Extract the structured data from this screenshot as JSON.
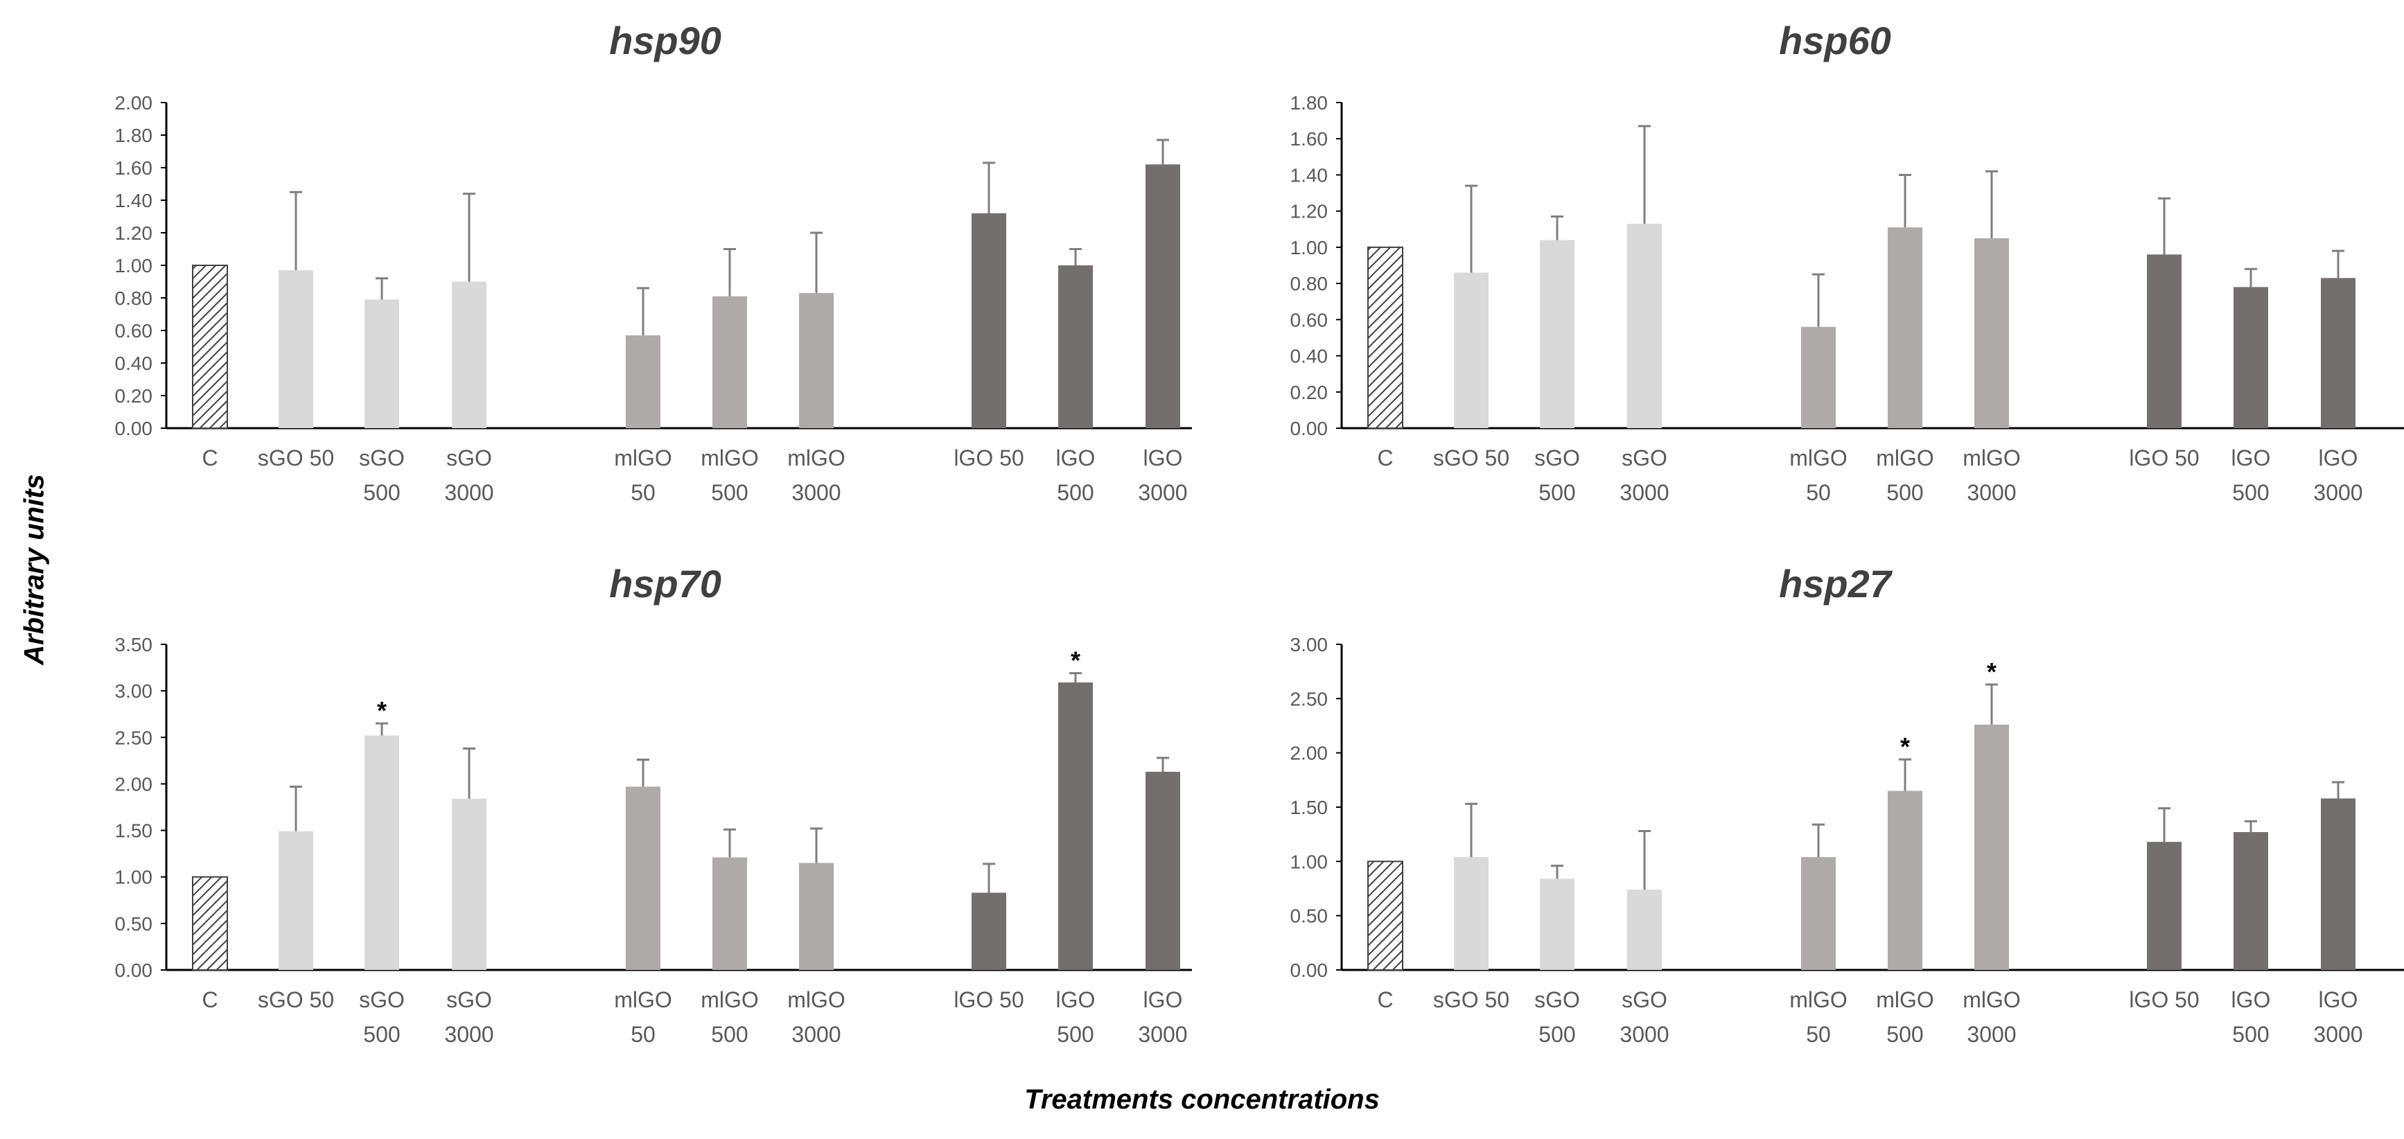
{
  "figure": {
    "y_axis_title": "Arbitrary units",
    "x_axis_title": "Treatments concentrations"
  },
  "colors": {
    "control": "#ffffff",
    "control_hatch": "#404040",
    "sGO": "#d9d9d9",
    "mlGO": "#aeaaaa",
    "lGO": "#736f6f",
    "error_bar": "#7f7f7f",
    "axis": "#000000",
    "tick_text": "#595959"
  },
  "chart_data": [
    {
      "type": "bar",
      "title": "hsp90",
      "categories": [
        "C",
        "sGO 50",
        "sGO 500",
        "sGO 3000",
        "mlGO 50",
        "mlGO 500",
        "mlGO 3000",
        "lGO 50",
        "lGO 500",
        "lGO 3000"
      ],
      "groups": [
        "control",
        "sGO",
        "sGO",
        "sGO",
        "mlGO",
        "mlGO",
        "mlGO",
        "lGO",
        "lGO",
        "lGO"
      ],
      "values": [
        1.0,
        0.97,
        0.79,
        0.9,
        0.57,
        0.81,
        0.83,
        1.32,
        1.0,
        1.62
      ],
      "errors": [
        0,
        0.48,
        0.13,
        0.54,
        0.29,
        0.29,
        0.37,
        0.31,
        0.1,
        0.15
      ],
      "significant": [
        false,
        false,
        false,
        false,
        false,
        false,
        false,
        false,
        false,
        false
      ],
      "ylim": [
        0,
        2.0
      ],
      "yticks": [
        "0.00",
        "0.20",
        "0.40",
        "0.60",
        "0.80",
        "1.00",
        "1.20",
        "1.40",
        "1.60",
        "1.80",
        "2.00"
      ]
    },
    {
      "type": "bar",
      "title": "hsp60",
      "categories": [
        "C",
        "sGO 50",
        "sGO 500",
        "sGO 3000",
        "mlGO 50",
        "mlGO 500",
        "mlGO 3000",
        "lGO 50",
        "lGO 500",
        "lGO 3000"
      ],
      "groups": [
        "control",
        "sGO",
        "sGO",
        "sGO",
        "mlGO",
        "mlGO",
        "mlGO",
        "lGO",
        "lGO",
        "lGO"
      ],
      "values": [
        1.0,
        0.86,
        1.04,
        1.13,
        0.56,
        1.11,
        1.05,
        0.96,
        0.78,
        0.83
      ],
      "errors": [
        0,
        0.48,
        0.13,
        0.54,
        0.29,
        0.29,
        0.37,
        0.31,
        0.1,
        0.15
      ],
      "significant": [
        false,
        false,
        false,
        false,
        false,
        false,
        false,
        false,
        false,
        false
      ],
      "ylim": [
        0,
        1.8
      ],
      "yticks": [
        "0.00",
        "0.20",
        "0.40",
        "0.60",
        "0.80",
        "1.00",
        "1.20",
        "1.40",
        "1.60",
        "1.80"
      ]
    },
    {
      "type": "bar",
      "title": "hsp70",
      "categories": [
        "C",
        "sGO 50",
        "sGO 500",
        "sGO 3000",
        "mlGO 50",
        "mlGO 500",
        "mlGO 3000",
        "lGO 50",
        "lGO 500",
        "lGO 3000"
      ],
      "groups": [
        "control",
        "sGO",
        "sGO",
        "sGO",
        "mlGO",
        "mlGO",
        "mlGO",
        "lGO",
        "lGO",
        "lGO"
      ],
      "values": [
        1.0,
        1.49,
        2.52,
        1.84,
        1.97,
        1.21,
        1.15,
        0.83,
        3.09,
        2.13
      ],
      "errors": [
        0,
        0.48,
        0.13,
        0.54,
        0.29,
        0.3,
        0.37,
        0.31,
        0.1,
        0.15
      ],
      "significant": [
        false,
        false,
        true,
        false,
        false,
        false,
        false,
        false,
        true,
        false
      ],
      "ylim": [
        0,
        3.5
      ],
      "yticks": [
        "0.00",
        "0.50",
        "1.00",
        "1.50",
        "2.00",
        "2.50",
        "3.00",
        "3.50"
      ]
    },
    {
      "type": "bar",
      "title": "hsp27",
      "categories": [
        "C",
        "sGO 50",
        "sGO 500",
        "sGO 3000",
        "mlGO 50",
        "mlGO 500",
        "mlGO 3000",
        "lGO 50",
        "lGO 500",
        "lGO 3000"
      ],
      "groups": [
        "control",
        "sGO",
        "sGO",
        "sGO",
        "mlGO",
        "mlGO",
        "mlGO",
        "lGO",
        "lGO",
        "lGO"
      ],
      "values": [
        1.0,
        1.04,
        0.84,
        0.74,
        1.04,
        1.65,
        2.26,
        1.18,
        1.27,
        1.58
      ],
      "errors": [
        0,
        0.49,
        0.12,
        0.54,
        0.3,
        0.29,
        0.37,
        0.31,
        0.1,
        0.15
      ],
      "significant": [
        false,
        false,
        false,
        false,
        false,
        true,
        true,
        false,
        false,
        false
      ],
      "ylim": [
        0,
        3.0
      ],
      "yticks": [
        "0.00",
        "0.50",
        "1.00",
        "1.50",
        "2.00",
        "2.50",
        "3.00"
      ]
    }
  ]
}
